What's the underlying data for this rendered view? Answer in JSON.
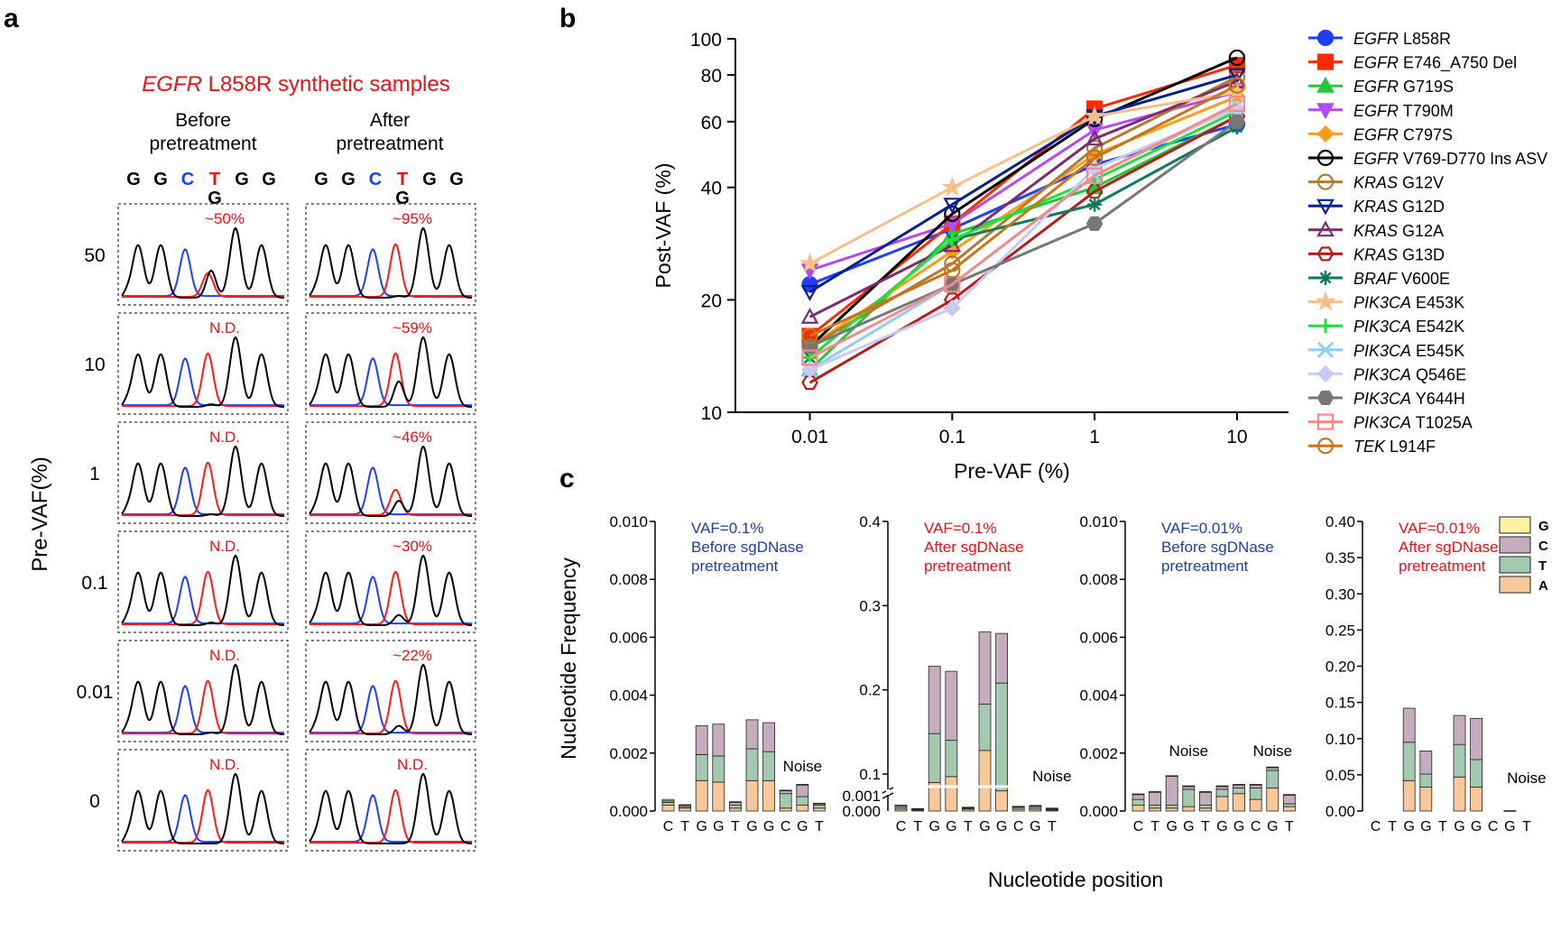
{
  "panel_a": {
    "label": "a",
    "title_gene": "EGFR",
    "title_rest": " L858R synthetic samples",
    "before_header": [
      "Before",
      "pretreatment"
    ],
    "after_header": [
      "After",
      "pretreatment"
    ],
    "sequence": [
      "G",
      "G",
      "C",
      "T",
      "G",
      "G"
    ],
    "alt_base": "G",
    "ylabel": "Pre-VAF(%)",
    "rows": [
      {
        "label": "50",
        "before": "~50%",
        "after": "~95%"
      },
      {
        "label": "10",
        "before": "N.D.",
        "after": "~59%"
      },
      {
        "label": "1",
        "before": "N.D.",
        "after": "~46%"
      },
      {
        "label": "0.1",
        "before": "N.D.",
        "after": "~30%"
      },
      {
        "label": "0.01",
        "before": "N.D.",
        "after": "~22%"
      },
      {
        "label": "0",
        "before": "N.D.",
        "after": "N.D."
      }
    ]
  },
  "panel_b": {
    "label": "b"
  },
  "panel_c": {
    "label": "c",
    "ylabel": "Nucleotide Frequency",
    "xlabel": "Nucleotide position",
    "legend": [
      "G",
      "C",
      "T",
      "A"
    ],
    "noise_label": "Noise"
  },
  "chart_data": [
    {
      "type": "line",
      "xlabel": "Pre-VAF (%)",
      "ylabel": "Post-VAF (%)",
      "x": [
        0.01,
        0.1,
        1,
        10
      ],
      "x_scale": "log",
      "y_scale": "log",
      "ylim": [
        10,
        100
      ],
      "xticks": [
        "0.01",
        "0.1",
        "1",
        "10"
      ],
      "yticks": [
        10,
        20,
        40,
        60,
        80,
        100
      ],
      "legend_placement": "right",
      "series": [
        {
          "name": "EGFR L858R",
          "gene": "EGFR",
          "mut": " L858R",
          "color": "#1f3fff",
          "marker": "circle",
          "values": [
            22,
            31,
            46,
            59
          ]
        },
        {
          "name": "EGFR E746_A750 Del",
          "gene": "EGFR",
          "mut": " E746_A750 Del",
          "color": "#ff2a00",
          "marker": "square",
          "values": [
            16,
            32,
            65,
            85
          ]
        },
        {
          "name": "EGFR G719S",
          "gene": "EGFR",
          "mut": " G719S",
          "color": "#22c83a",
          "marker": "triangle-up",
          "values": [
            13,
            30,
            40,
            62
          ]
        },
        {
          "name": "EGFR T790M",
          "gene": "EGFR",
          "mut": " T790M",
          "color": "#b14cf0",
          "marker": "triangle-down",
          "values": [
            24,
            32,
            57,
            72
          ]
        },
        {
          "name": "EGFR C797S",
          "gene": "EGFR",
          "mut": " C797S",
          "color": "#ff9c1a",
          "marker": "diamond",
          "values": [
            15,
            27,
            49,
            70
          ]
        },
        {
          "name": "EGFR V769-D770 Ins ASV",
          "gene": "EGFR",
          "mut": " V769-D770 Ins ASV",
          "color": "#000000",
          "marker": "circle-open",
          "values": [
            15,
            34,
            61,
            89
          ]
        },
        {
          "name": "KRAS G12V",
          "gene": "KRAS",
          "mut": " G12V",
          "color": "#b07b2e",
          "marker": "circle-open",
          "values": [
            15,
            25,
            51,
            79
          ]
        },
        {
          "name": "KRAS G12D",
          "gene": "KRAS",
          "mut": " G12D",
          "color": "#0a1f8f",
          "marker": "triangle-down-open",
          "values": [
            21,
            36,
            62,
            80
          ]
        },
        {
          "name": "KRAS G12A",
          "gene": "KRAS",
          "mut": " G12A",
          "color": "#7b2b6e",
          "marker": "triangle-up-open",
          "values": [
            18,
            28,
            54,
            77
          ]
        },
        {
          "name": "KRAS G13D",
          "gene": "KRAS",
          "mut": " G13D",
          "color": "#b71c1c",
          "marker": "hexagon-open",
          "values": [
            12,
            20,
            39,
            62
          ]
        },
        {
          "name": "BRAF V600E",
          "gene": "BRAF",
          "mut": " V600E",
          "color": "#0f7a5c",
          "marker": "asterisk",
          "values": [
            14,
            29,
            36,
            58
          ]
        },
        {
          "name": "PIK3CA E453K",
          "gene": "PIK3CA",
          "mut": " E453K",
          "color": "#f7c08a",
          "marker": "star",
          "values": [
            25,
            40,
            62,
            72
          ]
        },
        {
          "name": "PIK3CA E542K",
          "gene": "PIK3CA",
          "mut": " E542K",
          "color": "#22e03a",
          "marker": "plus",
          "values": [
            14,
            29,
            42,
            64
          ]
        },
        {
          "name": "PIK3CA E545K",
          "gene": "PIK3CA",
          "mut": " E545K",
          "color": "#8ecff5",
          "marker": "cross",
          "values": [
            13,
            22,
            43,
            66
          ]
        },
        {
          "name": "PIK3CA Q546E",
          "gene": "PIK3CA",
          "mut": " Q546E",
          "color": "#c9c9f2",
          "marker": "diamond",
          "values": [
            13,
            19,
            45,
            65
          ]
        },
        {
          "name": "PIK3CA Y644H",
          "gene": "PIK3CA",
          "mut": " Y644H",
          "color": "#777777",
          "marker": "hexagon",
          "values": [
            15,
            22,
            32,
            60
          ]
        },
        {
          "name": "PIK3CA T1025A",
          "gene": "PIK3CA",
          "mut": " T1025A",
          "color": "#f48a8a",
          "marker": "square-open",
          "values": [
            14,
            22,
            43,
            67
          ]
        },
        {
          "name": "TEK L914F",
          "gene": "TEK",
          "mut": " L914F",
          "color": "#c8741a",
          "marker": "circle-open",
          "values": [
            16,
            24,
            48,
            75
          ]
        }
      ]
    },
    {
      "type": "bar",
      "subtype": "stacked",
      "annotation": [
        "VAF=0.1%",
        "Before sgDNase",
        "pretreatment"
      ],
      "annotation_color": "#1f3f9f",
      "categories": [
        "C",
        "T",
        "G",
        "G",
        "T",
        "G",
        "G",
        "C",
        "G",
        "T"
      ],
      "ylim": [
        0,
        0.01
      ],
      "yticks": [
        "0.000",
        "0.002",
        "0.004",
        "0.006",
        "0.008",
        "0.010"
      ],
      "series": [
        {
          "name": "A",
          "values": [
            0.0002,
            0.0001,
            0.00105,
            0.001,
            0.0001,
            0.00105,
            0.00105,
            0.0001,
            0.0002,
            0.0001
          ]
        },
        {
          "name": "T",
          "values": [
            0.0001,
            5e-05,
            0.0009,
            0.0009,
            0.0001,
            0.0011,
            0.001,
            0.0005,
            0.0003,
            0.0001
          ]
        },
        {
          "name": "C",
          "values": [
            5e-05,
            5e-05,
            0.001,
            0.0011,
            0.0001,
            0.001,
            0.001,
            0.0001,
            0.0004,
            5e-05
          ]
        },
        {
          "name": "G",
          "values": [
            5e-05,
            2e-05,
            0,
            0,
            2e-05,
            0,
            0,
            2e-05,
            2e-05,
            2e-05
          ]
        }
      ],
      "noise_after_index": 8
    },
    {
      "type": "bar",
      "subtype": "stacked",
      "annotation": [
        "VAF=0.1%",
        "After sgDNase",
        "pretreatment"
      ],
      "annotation_color": "#e3141b",
      "categories": [
        "C",
        "T",
        "G",
        "G",
        "T",
        "G",
        "G",
        "C",
        "G",
        "T"
      ],
      "y_axis_break": true,
      "yticks_low": [
        "0.000",
        "0.001"
      ],
      "yticks_high": [
        "0.1",
        "0.2",
        "0.3",
        "0.4"
      ],
      "ylim": [
        0,
        0.4
      ],
      "series": [
        {
          "name": "A",
          "values": [
            0.0002,
            0.0001,
            0.09,
            0.097,
            0.0002,
            0.128,
            0.08,
            0.0002,
            0.0002,
            0.0001
          ]
        },
        {
          "name": "T",
          "values": [
            0.0002,
            0.0001,
            0.058,
            0.043,
            0.0001,
            0.055,
            0.128,
            0.0002,
            0.0002,
            0.0001
          ]
        },
        {
          "name": "C",
          "values": [
            0.0002,
            5e-05,
            0.08,
            0.082,
            0.0001,
            0.086,
            0.059,
            0.0001,
            0.0002,
            0.0001
          ]
        },
        {
          "name": "G",
          "values": [
            5e-05,
            2e-05,
            0,
            0,
            2e-05,
            0,
            0,
            2e-05,
            2e-05,
            2e-05
          ]
        }
      ],
      "noise_after_index": 9
    },
    {
      "type": "bar",
      "subtype": "stacked",
      "annotation": [
        "VAF=0.01%",
        "Before sgDNase",
        "pretreatment"
      ],
      "annotation_color": "#1f3f9f",
      "categories": [
        "C",
        "T",
        "G",
        "G",
        "T",
        "G",
        "G",
        "C",
        "G",
        "T"
      ],
      "ylim": [
        0,
        0.01
      ],
      "yticks": [
        "0.000",
        "0.002",
        "0.004",
        "0.006",
        "0.008",
        "0.010"
      ],
      "series": [
        {
          "name": "A",
          "values": [
            0.0002,
            0.0001,
            0.0001,
            0.00015,
            0.0001,
            0.0005,
            0.0006,
            0.0004,
            0.0008,
            0.00015
          ]
        },
        {
          "name": "T",
          "values": [
            0.0002,
            0.0001,
            0.0001,
            0.0006,
            0.0001,
            0.00025,
            0.0002,
            0.0004,
            0.0006,
            0.0001
          ]
        },
        {
          "name": "C",
          "values": [
            0.00017,
            0.00045,
            0.001,
            0.0001,
            0.00045,
            0.0001,
            0.0001,
            0.0001,
            0.0001,
            0.0003
          ]
        },
        {
          "name": "G",
          "values": [
            2e-05,
            2e-05,
            2e-05,
            2e-05,
            2e-05,
            2e-05,
            2e-05,
            2e-05,
            2e-05,
            2e-05
          ]
        }
      ],
      "noise_labels_over": [
        3,
        8
      ]
    },
    {
      "type": "bar",
      "subtype": "stacked",
      "annotation": [
        "VAF=0.01%",
        "After sgDNase",
        "pretreatment"
      ],
      "annotation_color": "#e3141b",
      "categories": [
        "C",
        "T",
        "G",
        "G",
        "T",
        "G",
        "G",
        "C",
        "G",
        "T"
      ],
      "ylim": [
        0,
        0.4
      ],
      "yticks": [
        "0.00",
        "0.05",
        "0.10",
        "0.15",
        "0.20",
        "0.25",
        "0.30",
        "0.35",
        "0.40"
      ],
      "series": [
        {
          "name": "A",
          "values": [
            0,
            0,
            0.042,
            0.033,
            0,
            0.047,
            0.033,
            0,
            0,
            0
          ]
        },
        {
          "name": "T",
          "values": [
            0,
            0,
            0.053,
            0.018,
            0,
            0.045,
            0.038,
            0,
            0,
            0
          ]
        },
        {
          "name": "C",
          "values": [
            0,
            0,
            0.047,
            0.032,
            0,
            0.04,
            0.057,
            0,
            0.0005,
            0
          ]
        },
        {
          "name": "G",
          "values": [
            0,
            0,
            0,
            0,
            0,
            0,
            0,
            0,
            0,
            0
          ]
        }
      ],
      "noise_after_index": 9
    }
  ],
  "colors": {
    "trace_black": "#000000",
    "trace_blue": "#1f3fff",
    "trace_red": "#ff1a1a",
    "label_red": "#e3141b",
    "label_blue": "#1f3f9f",
    "A": "#f8c89b",
    "T": "#a5c8b0",
    "C": "#c4aebe",
    "G": "#fcf2a4"
  }
}
